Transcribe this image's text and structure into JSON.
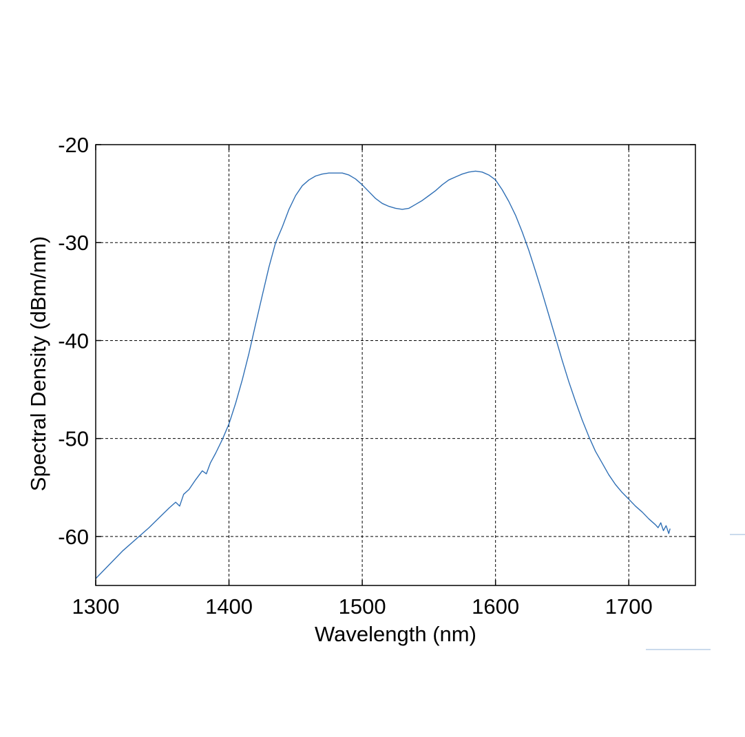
{
  "chart_data": {
    "type": "line",
    "title": "",
    "xlabel": "Wavelength (nm)",
    "ylabel": "Spectral Density (dBm/nm)",
    "xlim": [
      1300,
      1750
    ],
    "ylim": [
      -65,
      -20
    ],
    "xticks": [
      1300,
      1400,
      1500,
      1600,
      1700
    ],
    "yticks": [
      -20,
      -30,
      -40,
      -50,
      -60
    ],
    "grid": true,
    "grid_style": "dashed",
    "line_color": "#2f6fb5",
    "series": [
      {
        "x": [
          1300,
          1320,
          1340,
          1355,
          1360,
          1363,
          1366,
          1370,
          1375,
          1380,
          1383,
          1386,
          1390,
          1395,
          1400,
          1405,
          1410,
          1415,
          1420,
          1425,
          1430,
          1435,
          1440,
          1445,
          1450,
          1455,
          1460,
          1465,
          1470,
          1475,
          1480,
          1485,
          1490,
          1495,
          1500,
          1505,
          1510,
          1515,
          1520,
          1525,
          1530,
          1535,
          1540,
          1545,
          1550,
          1555,
          1560,
          1565,
          1570,
          1575,
          1580,
          1585,
          1590,
          1595,
          1600,
          1605,
          1610,
          1615,
          1620,
          1625,
          1630,
          1635,
          1640,
          1645,
          1650,
          1655,
          1660,
          1665,
          1670,
          1675,
          1680,
          1685,
          1690,
          1695,
          1700,
          1705,
          1710,
          1715,
          1720,
          1722,
          1724,
          1726,
          1728,
          1730,
          1731
        ],
        "y": [
          -64.3,
          -61.5,
          -59.1,
          -57.1,
          -56.5,
          -56.9,
          -55.7,
          -55.2,
          -54.2,
          -53.3,
          -53.6,
          -52.5,
          -51.5,
          -50.1,
          -48.5,
          -46.4,
          -44.0,
          -41.3,
          -38.3,
          -35.4,
          -32.5,
          -30.0,
          -28.4,
          -26.6,
          -25.2,
          -24.2,
          -23.6,
          -23.2,
          -23.0,
          -22.9,
          -22.9,
          -22.9,
          -23.1,
          -23.5,
          -24.1,
          -24.8,
          -25.5,
          -26.0,
          -26.3,
          -26.5,
          -26.6,
          -26.5,
          -26.1,
          -25.7,
          -25.2,
          -24.7,
          -24.1,
          -23.6,
          -23.3,
          -23.0,
          -22.8,
          -22.7,
          -22.8,
          -23.1,
          -23.6,
          -24.6,
          -25.8,
          -27.2,
          -28.9,
          -30.8,
          -32.9,
          -35.1,
          -37.4,
          -39.7,
          -42.0,
          -44.2,
          -46.2,
          -48.1,
          -49.8,
          -51.3,
          -52.5,
          -53.7,
          -54.7,
          -55.5,
          -56.2,
          -56.9,
          -57.5,
          -58.2,
          -58.8,
          -59.1,
          -58.6,
          -59.4,
          -58.9,
          -59.7,
          -59.2
        ]
      }
    ]
  }
}
